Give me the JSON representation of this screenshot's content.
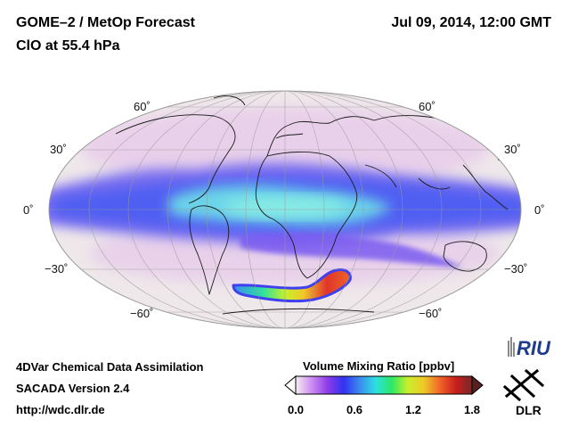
{
  "header": {
    "title": "GOME–2 / MetOp Forecast",
    "subtitle": "ClO at 55.4 hPa",
    "datetime": "Jul 09, 2014, 12:00 GMT"
  },
  "map": {
    "projection": "Mollweide / Hammer",
    "lat_labels": [
      {
        "text": "60˚",
        "lat": 60,
        "side": "left"
      },
      {
        "text": "60˚",
        "lat": 60,
        "side": "right"
      },
      {
        "text": "30˚",
        "lat": 30,
        "side": "left"
      },
      {
        "text": "30˚",
        "lat": 30,
        "side": "right"
      },
      {
        "text": "0˚",
        "lat": 0,
        "side": "left"
      },
      {
        "text": "0˚",
        "lat": 0,
        "side": "right"
      },
      {
        "text": "−30˚",
        "lat": -30,
        "side": "left"
      },
      {
        "text": "−30˚",
        "lat": -30,
        "side": "right"
      },
      {
        "text": "−60˚",
        "lat": -60,
        "side": "left"
      },
      {
        "text": "−60˚",
        "lat": -60,
        "side": "right"
      }
    ],
    "background_color": "#efe8ea",
    "tropical_band_color": "#7a6ef0",
    "equatorial_core_color": "#6ad4e8",
    "polar_high_color": "#e0352a"
  },
  "footer": {
    "line1": "4DVar Chemical Data Assimilation",
    "line2": "SACADA Version 2.4",
    "line3": "http://wdc.dlr.de"
  },
  "colorbar": {
    "title": "Volume Mixing Ratio [ppbv]",
    "ticks": [
      {
        "text": "0.0",
        "value": 0.0
      },
      {
        "text": "0.6",
        "value": 0.6
      },
      {
        "text": "1.2",
        "value": 1.2
      },
      {
        "text": "1.8",
        "value": 1.8
      }
    ],
    "min": 0.0,
    "max": 1.8,
    "colors": [
      "#f4eef2",
      "#cc8cf0",
      "#8c3ce8",
      "#3232f0",
      "#3c8cf0",
      "#2ce0e0",
      "#2ce864",
      "#c8f02a",
      "#f0c828",
      "#f06428",
      "#c81e1e",
      "#782828"
    ]
  },
  "logos": {
    "riu": "RIU",
    "dlr": "DLR"
  }
}
